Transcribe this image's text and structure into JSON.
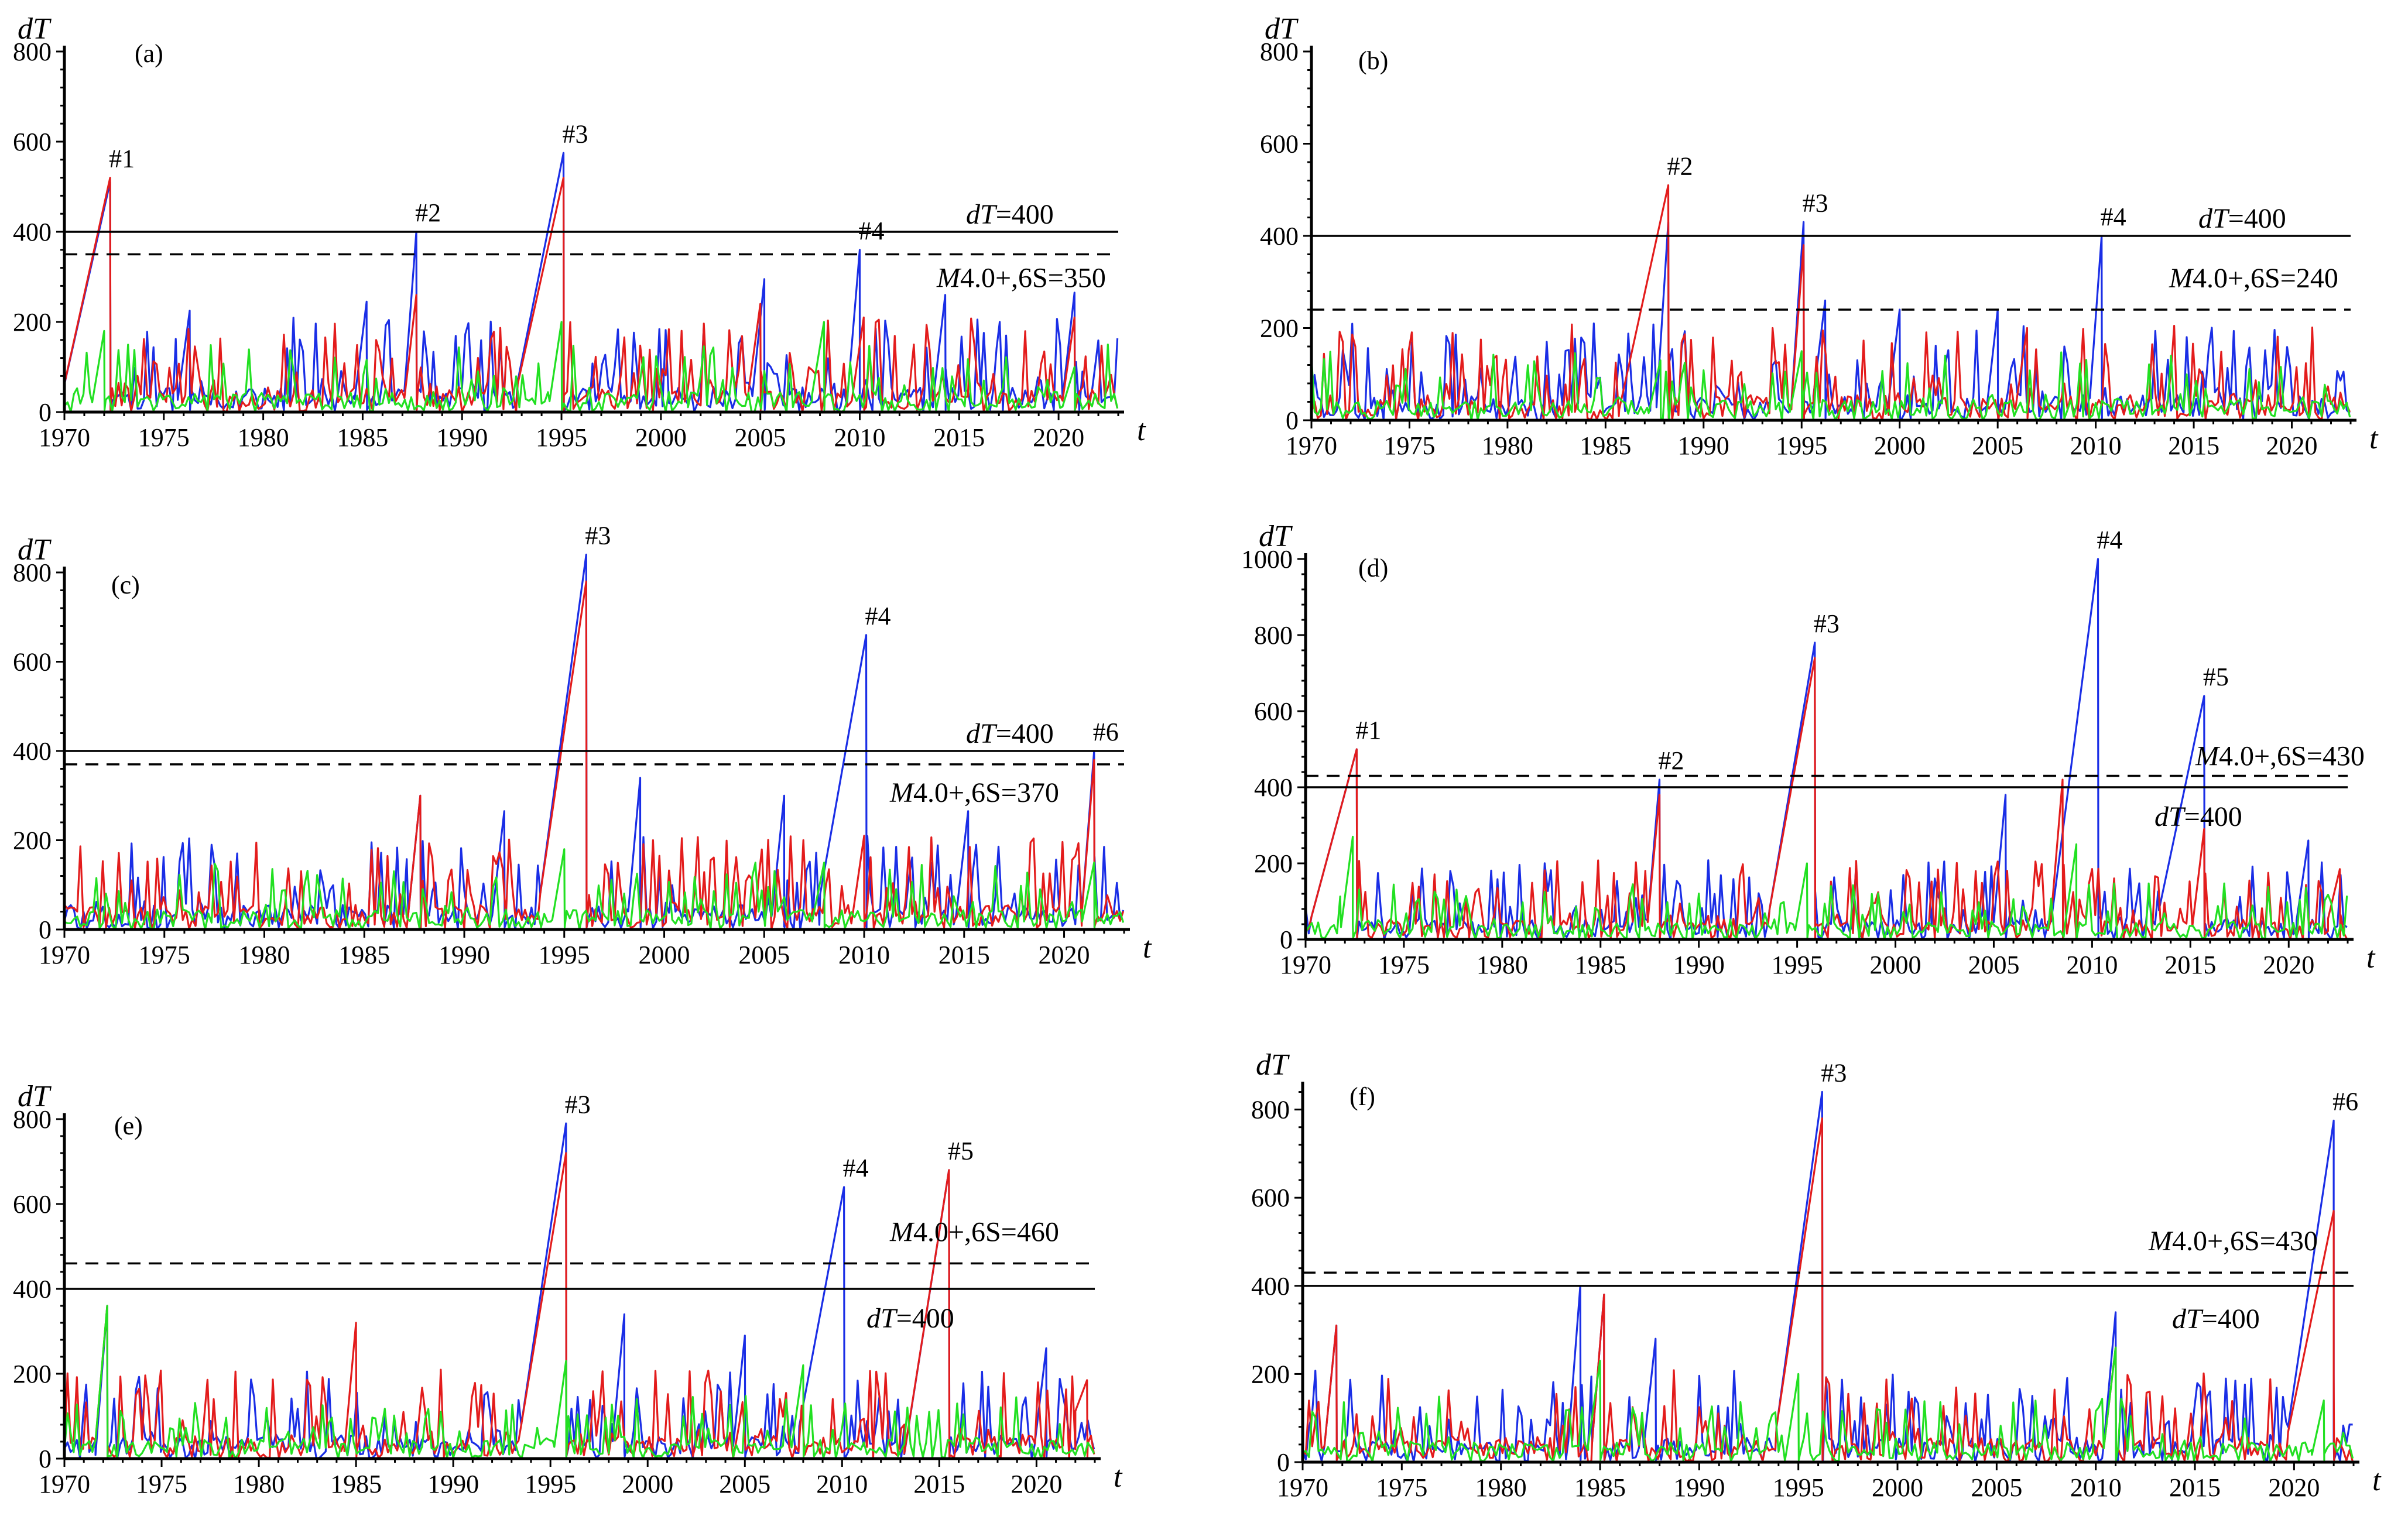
{
  "colors": {
    "blue": "#1a2ee6",
    "red": "#e31c1c",
    "green": "#22e022"
  },
  "chart_data": [
    {
      "type": "line",
      "panel": "(a)",
      "title": "",
      "xlabel": "t",
      "ylabel": "dT",
      "xlim": [
        1970,
        2023
      ],
      "ylim": [
        0,
        800
      ],
      "xticks": [
        "1970",
        "1975",
        "1980",
        "1985",
        "1990",
        "1995",
        "2000",
        "2005",
        "2010",
        "2015",
        "2020"
      ],
      "yticks": [
        "0",
        "200",
        "400",
        "600",
        "800"
      ],
      "reference_lines": [
        {
          "y": 400,
          "style": "solid",
          "label": "dT=400"
        },
        {
          "y": 350,
          "style": "dashed",
          "label": "M4.0+,6S=350"
        }
      ],
      "annotations": [
        {
          "label": "#1",
          "x": 1972.3,
          "y": 520
        },
        {
          "label": "#2",
          "x": 1987.7,
          "y": 400
        },
        {
          "label": "#3",
          "x": 1995.1,
          "y": 575
        },
        {
          "label": "#4",
          "x": 2010.0,
          "y": 360
        }
      ],
      "series": [
        {
          "name": "blue",
          "color": "#1a2ee6",
          "peaks": [
            [
              1972.3,
              510
            ],
            [
              1976.3,
              225
            ],
            [
              1985.2,
              245
            ],
            [
              1987.7,
              400
            ],
            [
              1995.1,
              575
            ],
            [
              2005.2,
              295
            ],
            [
              2010.0,
              360
            ],
            [
              2014.3,
              260
            ],
            [
              2020.8,
              265
            ]
          ]
        },
        {
          "name": "red",
          "color": "#e31c1c",
          "peaks": [
            [
              1972.3,
              520
            ],
            [
              1987.7,
              260
            ],
            [
              1995.1,
              520
            ],
            [
              2005.0,
              240
            ],
            [
              2010.2,
              210
            ],
            [
              2020.8,
              210
            ]
          ]
        },
        {
          "name": "green",
          "color": "#22e022",
          "peaks": [
            [
              1972.0,
              180
            ],
            [
              1995.0,
              200
            ],
            [
              2008.2,
              200
            ],
            [
              2020.8,
              100
            ]
          ]
        }
      ]
    },
    {
      "type": "line",
      "panel": "(b)",
      "title": "",
      "xlabel": "t",
      "ylabel": "dT",
      "xlim": [
        1970,
        2023
      ],
      "ylim": [
        0,
        800
      ],
      "xticks": [
        "1970",
        "1975",
        "1980",
        "1985",
        "1990",
        "1995",
        "2000",
        "2005",
        "2010",
        "2015",
        "2020"
      ],
      "yticks": [
        "0",
        "200",
        "400",
        "600",
        "800"
      ],
      "reference_lines": [
        {
          "y": 400,
          "style": "solid",
          "label": "dT=400"
        },
        {
          "y": 240,
          "style": "dashed",
          "label": "M4.0+,6S=240"
        }
      ],
      "annotations": [
        {
          "label": "#2",
          "x": 1988.2,
          "y": 510
        },
        {
          "label": "#3",
          "x": 1995.1,
          "y": 430
        },
        {
          "label": "#4",
          "x": 2010.3,
          "y": 400
        }
      ],
      "series": [
        {
          "name": "blue",
          "color": "#1a2ee6",
          "peaks": [
            [
              1988.2,
              430
            ],
            [
              1995.1,
              430
            ],
            [
              1996.2,
              260
            ],
            [
              2000.0,
              240
            ],
            [
              2005.0,
              240
            ],
            [
              2010.3,
              400
            ]
          ]
        },
        {
          "name": "red",
          "color": "#e31c1c",
          "peaks": [
            [
              1986.3,
              200
            ],
            [
              1988.2,
              510
            ],
            [
              1995.1,
              380
            ],
            [
              2006.5,
              200
            ]
          ]
        },
        {
          "name": "green",
          "color": "#22e022",
          "peaks": [
            [
              1987.8,
              130
            ],
            [
              1995.0,
              150
            ]
          ]
        }
      ]
    },
    {
      "type": "line",
      "panel": "(c)",
      "title": "",
      "xlabel": "t",
      "ylabel": "dT",
      "xlim": [
        1970,
        2023
      ],
      "ylim": [
        0,
        800
      ],
      "xticks": [
        "1970",
        "1975",
        "1980",
        "1985",
        "1990",
        "1995",
        "2000",
        "2005",
        "2010",
        "2015",
        "2020"
      ],
      "yticks": [
        "0",
        "200",
        "400",
        "600",
        "800"
      ],
      "reference_lines": [
        {
          "y": 400,
          "style": "solid",
          "label": "dT=400"
        },
        {
          "y": 370,
          "style": "dashed",
          "label": "M4.0+,6S=370"
        }
      ],
      "annotations": [
        {
          "label": "#3",
          "x": 1996.1,
          "y": 840
        },
        {
          "label": "#4",
          "x": 2010.1,
          "y": 660
        },
        {
          "label": "#6",
          "x": 2021.5,
          "y": 400
        }
      ],
      "series": [
        {
          "name": "blue",
          "color": "#1a2ee6",
          "peaks": [
            [
              1987.8,
              300
            ],
            [
              1992.0,
              265
            ],
            [
              1996.1,
              840
            ],
            [
              1998.8,
              340
            ],
            [
              2006.0,
              300
            ],
            [
              2010.1,
              660
            ],
            [
              2015.2,
              265
            ],
            [
              2021.5,
              400
            ]
          ]
        },
        {
          "name": "red",
          "color": "#e31c1c",
          "peaks": [
            [
              1987.8,
              300
            ],
            [
              1996.1,
              780
            ],
            [
              2010.0,
              210
            ],
            [
              2021.5,
              380
            ]
          ]
        },
        {
          "name": "green",
          "color": "#22e022",
          "peaks": [
            [
              1995.0,
              180
            ],
            [
              2008.0,
              150
            ],
            [
              2021.5,
              150
            ]
          ]
        }
      ]
    },
    {
      "type": "line",
      "panel": "(d)",
      "title": "",
      "xlabel": "t",
      "ylabel": "dT",
      "xlim": [
        1970,
        2023
      ],
      "ylim": [
        0,
        1000
      ],
      "xticks": [
        "1970",
        "1975",
        "1980",
        "1985",
        "1990",
        "1995",
        "2000",
        "2005",
        "2010",
        "2015",
        "2020"
      ],
      "yticks": [
        "0",
        "200",
        "400",
        "600",
        "800",
        "1000"
      ],
      "reference_lines": [
        {
          "y": 430,
          "style": "dashed",
          "label": "M4.0+,6S=430"
        },
        {
          "y": 400,
          "style": "solid",
          "label": "dT=400"
        }
      ],
      "annotations": [
        {
          "label": "#1",
          "x": 1972.6,
          "y": 500
        },
        {
          "label": "#2",
          "x": 1988.0,
          "y": 420
        },
        {
          "label": "#3",
          "x": 1995.9,
          "y": 780
        },
        {
          "label": "#4",
          "x": 2010.3,
          "y": 1000
        },
        {
          "label": "#5",
          "x": 2015.7,
          "y": 640
        }
      ],
      "series": [
        {
          "name": "blue",
          "color": "#1a2ee6",
          "peaks": [
            [
              1972.6,
              500
            ],
            [
              1988.0,
              420
            ],
            [
              1995.9,
              780
            ],
            [
              2005.6,
              380
            ],
            [
              2010.3,
              1000
            ],
            [
              2015.7,
              640
            ],
            [
              2021.0,
              260
            ]
          ]
        },
        {
          "name": "red",
          "color": "#e31c1c",
          "peaks": [
            [
              1972.6,
              500
            ],
            [
              1988.0,
              380
            ],
            [
              1995.9,
              740
            ],
            [
              2008.5,
              420
            ],
            [
              2015.7,
              290
            ],
            [
              2022.6,
              185
            ]
          ]
        },
        {
          "name": "green",
          "color": "#22e022",
          "peaks": [
            [
              1972.4,
              270
            ],
            [
              1995.5,
              200
            ],
            [
              2009.2,
              250
            ]
          ]
        }
      ]
    },
    {
      "type": "line",
      "panel": "(e)",
      "title": "",
      "xlabel": "t",
      "ylabel": "dT",
      "xlim": [
        1970,
        2023
      ],
      "ylim": [
        0,
        800
      ],
      "xticks": [
        "1970",
        "1975",
        "1980",
        "1985",
        "1990",
        "1995",
        "2000",
        "2005",
        "2010",
        "2015",
        "2020"
      ],
      "yticks": [
        "0",
        "200",
        "400",
        "600",
        "800"
      ],
      "reference_lines": [
        {
          "y": 460,
          "style": "dashed",
          "label": "M4.0+,6S=460"
        },
        {
          "y": 400,
          "style": "solid",
          "label": "dT=400"
        }
      ],
      "annotations": [
        {
          "label": "#3",
          "x": 1995.8,
          "y": 790
        },
        {
          "label": "#4",
          "x": 2010.1,
          "y": 640
        },
        {
          "label": "#5",
          "x": 2015.5,
          "y": 680
        }
      ],
      "series": [
        {
          "name": "blue",
          "color": "#1a2ee6",
          "peaks": [
            [
              1972.2,
              360
            ],
            [
              1995.8,
              790
            ],
            [
              1998.8,
              340
            ],
            [
              2005.0,
              290
            ],
            [
              2010.1,
              640
            ],
            [
              2015.5,
              680
            ],
            [
              2020.5,
              260
            ]
          ]
        },
        {
          "name": "red",
          "color": "#e31c1c",
          "peaks": [
            [
              1972.2,
              360
            ],
            [
              1985.0,
              320
            ],
            [
              1995.8,
              720
            ],
            [
              2015.5,
              680
            ],
            [
              2022.6,
              185
            ]
          ]
        },
        {
          "name": "green",
          "color": "#22e022",
          "peaks": [
            [
              1972.2,
              360
            ],
            [
              1995.8,
              230
            ],
            [
              2008.0,
              220
            ]
          ]
        }
      ]
    },
    {
      "type": "line",
      "panel": "(f)",
      "title": "",
      "xlabel": "t",
      "ylabel": "dT",
      "xlim": [
        1970,
        2023
      ],
      "ylim": [
        0,
        850
      ],
      "xticks": [
        "1970",
        "1975",
        "1980",
        "1985",
        "1990",
        "1995",
        "2000",
        "2005",
        "2010",
        "2015",
        "2020"
      ],
      "yticks": [
        "0",
        "200",
        "400",
        "600",
        "800"
      ],
      "reference_lines": [
        {
          "y": 430,
          "style": "dashed",
          "label": "M4.0+,6S=430"
        },
        {
          "y": 400,
          "style": "solid",
          "label": "dT=400"
        }
      ],
      "annotations": [
        {
          "label": "#3",
          "x": 1996.2,
          "y": 840
        },
        {
          "label": "#6",
          "x": 2022.0,
          "y": 775
        }
      ],
      "series": [
        {
          "name": "blue",
          "color": "#1a2ee6",
          "peaks": [
            [
              1971.7,
              310
            ],
            [
              1984.0,
              400
            ],
            [
              1985.2,
              380
            ],
            [
              1987.8,
              280
            ],
            [
              1996.2,
              840
            ],
            [
              2011.0,
              340
            ],
            [
              2022.0,
              775
            ]
          ]
        },
        {
          "name": "red",
          "color": "#e31c1c",
          "peaks": [
            [
              1971.7,
              310
            ],
            [
              1985.2,
              380
            ],
            [
              1996.2,
              780
            ],
            [
              2011.0,
              260
            ],
            [
              2022.0,
              570
            ]
          ]
        },
        {
          "name": "green",
          "color": "#22e022",
          "peaks": [
            [
              1985.0,
              230
            ],
            [
              1995.0,
              200
            ],
            [
              2011.0,
              260
            ],
            [
              2021.5,
              140
            ]
          ]
        }
      ]
    }
  ]
}
